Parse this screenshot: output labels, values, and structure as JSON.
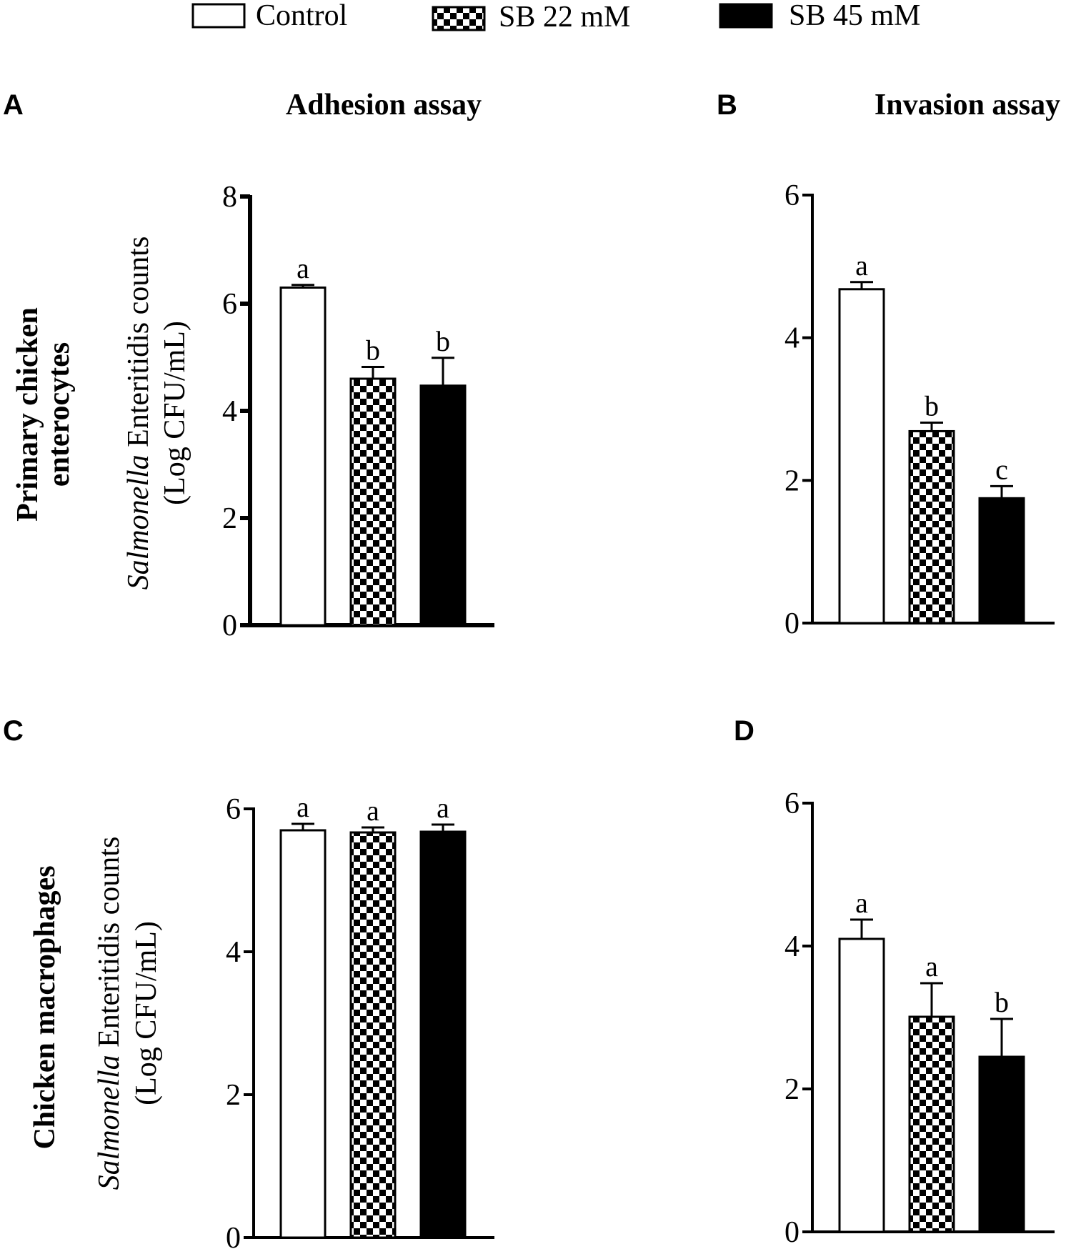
{
  "legend": {
    "items": [
      {
        "label": "Control",
        "style": "open"
      },
      {
        "label": "SB 22 mM",
        "style": "checker"
      },
      {
        "label": "SB 45 mM",
        "style": "solid"
      }
    ]
  },
  "column_titles": {
    "left": "Adhesion assay",
    "right": "Invasion assay"
  },
  "row_labels": {
    "top": {
      "line1": "Primary chicken",
      "line2": "enterocytes"
    },
    "bottom": {
      "line1": "Chicken macrophages"
    }
  },
  "y_axis_title": {
    "italic": "Salmonella",
    "rest": " Enteritidis counts",
    "line2": "(Log CFU/mL)"
  },
  "colors": {
    "ink": "#000000",
    "paper": "#ffffff"
  },
  "chart_data": [
    {
      "panel": "A",
      "type": "bar",
      "title": "Adhesion assay",
      "categories": [
        "Control",
        "SB 22 mM",
        "SB 45 mM"
      ],
      "values": [
        6.3,
        4.6,
        4.47
      ],
      "errors": [
        0.05,
        0.22,
        0.52
      ],
      "significance": [
        "a",
        "b",
        "b"
      ],
      "ylim": [
        0,
        8
      ],
      "yticks": [
        0,
        2,
        4,
        6,
        8
      ],
      "ylabel": "Salmonella Enteritidis counts (Log CFU/mL)"
    },
    {
      "panel": "B",
      "type": "bar",
      "title": "Invasion assay",
      "categories": [
        "Control",
        "SB 22 mM",
        "SB 45 mM"
      ],
      "values": [
        4.68,
        2.69,
        1.75
      ],
      "errors": [
        0.1,
        0.12,
        0.17
      ],
      "significance": [
        "a",
        "b",
        "c"
      ],
      "ylim": [
        0,
        6
      ],
      "yticks": [
        0,
        2,
        4,
        6
      ],
      "ylabel": ""
    },
    {
      "panel": "C",
      "type": "bar",
      "title": "",
      "categories": [
        "Control",
        "SB 22 mM",
        "SB 45 mM"
      ],
      "values": [
        5.7,
        5.67,
        5.68
      ],
      "errors": [
        0.09,
        0.07,
        0.1
      ],
      "significance": [
        "a",
        "a",
        "a"
      ],
      "ylim": [
        0,
        6
      ],
      "yticks": [
        0,
        2,
        4,
        6
      ],
      "ylabel": "Salmonella Enteritidis counts (Log CFU/mL)"
    },
    {
      "panel": "D",
      "type": "bar",
      "title": "",
      "categories": [
        "Control",
        "SB 22 mM",
        "SB 45 mM"
      ],
      "values": [
        4.1,
        3.01,
        2.45
      ],
      "errors": [
        0.27,
        0.47,
        0.53
      ],
      "significance": [
        "a",
        "a",
        "b"
      ],
      "ylim": [
        0,
        6
      ],
      "yticks": [
        0,
        2,
        4,
        6
      ],
      "ylabel": ""
    }
  ]
}
